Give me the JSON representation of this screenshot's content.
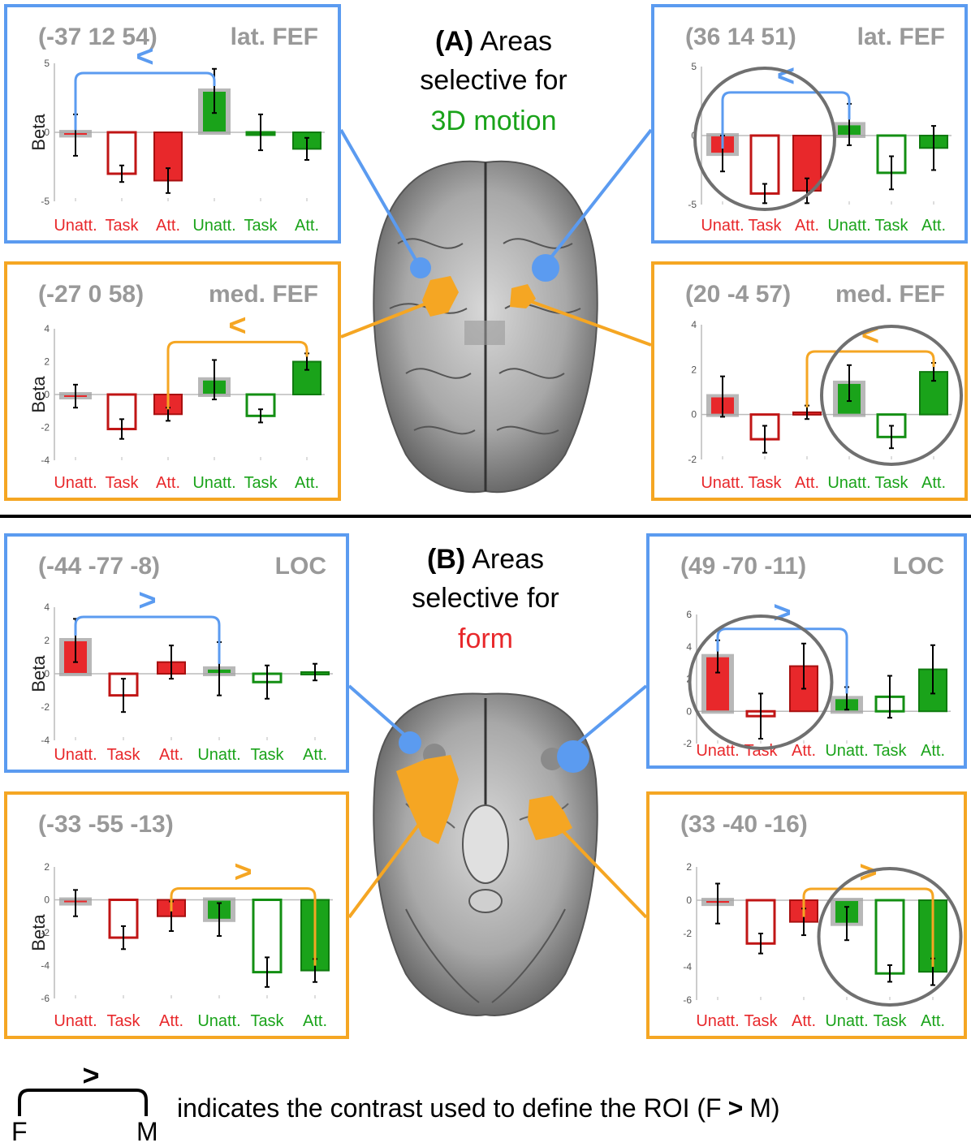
{
  "colors": {
    "blue": "#5b9bf0",
    "orange": "#f5a623",
    "red": "#e8282b",
    "green": "#1aa31a",
    "gray": "#a0a0a0",
    "circle": "#707070"
  },
  "panel_a": {
    "label": "(A)",
    "line1": "Areas",
    "line2": "selective for",
    "line3": "3D motion"
  },
  "panel_b": {
    "label": "(B)",
    "line1": "Areas",
    "line2": "selective for",
    "line3": "form"
  },
  "legend": {
    "symbol": ">",
    "left": "F",
    "right": "M",
    "text": "indicates the contrast used to define the ROI (F",
    "gt": ">",
    "text_end": "M)"
  },
  "chart_data": [
    {
      "type": "bar",
      "coord": "(-37 12 54)",
      "region": "lat. FEF",
      "ylabel": "Beta",
      "categories": [
        "Unatt.",
        "Task",
        "Att.",
        "Unatt.",
        "Task",
        "Att."
      ],
      "values": [
        -0.2,
        -3.0,
        -3.5,
        3.0,
        0.0,
        -1.2
      ],
      "errors": [
        1.5,
        0.6,
        0.9,
        1.6,
        1.3,
        0.8
      ],
      "yticks": [
        5,
        0,
        -5
      ],
      "ylim": [
        -5,
        5
      ],
      "contrast": "<",
      "contrast_from": 0,
      "contrast_to": 3,
      "frame": "blue",
      "circle": ""
    },
    {
      "type": "bar",
      "coord": "(36 14 51)",
      "region": "lat. FEF",
      "ylabel": "",
      "categories": [
        "Unatt.",
        "Task",
        "Att.",
        "Unatt.",
        "Task",
        "Att."
      ],
      "values": [
        -1.3,
        -4.2,
        -4.0,
        0.8,
        -2.7,
        -0.9
      ],
      "errors": [
        1.3,
        0.7,
        0.9,
        1.5,
        1.2,
        1.6
      ],
      "yticks": [
        5,
        0,
        -5
      ],
      "ylim": [
        -5,
        5
      ],
      "contrast": "<",
      "contrast_from": 0,
      "contrast_to": 3,
      "frame": "blue",
      "circle": "left"
    },
    {
      "type": "bar",
      "coord": "(-27 0 58)",
      "region": "med. FEF",
      "ylabel": "Beta",
      "categories": [
        "Unatt.",
        "Task",
        "Att.",
        "Unatt.",
        "Task",
        "Att."
      ],
      "values": [
        -0.1,
        -2.1,
        -1.2,
        0.9,
        -1.3,
        2.0
      ],
      "errors": [
        0.7,
        0.6,
        0.4,
        1.2,
        0.4,
        0.5
      ],
      "yticks": [
        4,
        2,
        0,
        -2,
        -4
      ],
      "ylim": [
        -4,
        4
      ],
      "contrast": "<",
      "contrast_from": 2,
      "contrast_to": 5,
      "frame": "orange",
      "circle": ""
    },
    {
      "type": "bar",
      "coord": "(20 -4 57)",
      "region": "med. FEF",
      "ylabel": "",
      "categories": [
        "Unatt.",
        "Task",
        "Att.",
        "Unatt.",
        "Task",
        "Att."
      ],
      "values": [
        0.8,
        -1.1,
        0.1,
        1.4,
        -1.0,
        1.9
      ],
      "errors": [
        0.9,
        0.6,
        0.3,
        0.8,
        0.5,
        0.4
      ],
      "yticks": [
        4,
        2,
        0,
        -2
      ],
      "ylim": [
        -2,
        4
      ],
      "contrast": "<",
      "contrast_from": 2,
      "contrast_to": 5,
      "frame": "orange",
      "circle": "right"
    },
    {
      "type": "bar",
      "coord": "(-44 -77 -8)",
      "region": "LOC",
      "ylabel": "Beta",
      "categories": [
        "Unatt.",
        "Task",
        "Att.",
        "Unatt.",
        "Task",
        "Att."
      ],
      "values": [
        2.0,
        -1.3,
        0.7,
        0.3,
        -0.5,
        0.1
      ],
      "errors": [
        1.3,
        1.0,
        1.0,
        1.6,
        1.0,
        0.5
      ],
      "yticks": [
        4,
        2,
        0,
        -2,
        -4
      ],
      "ylim": [
        -4,
        4
      ],
      "contrast": ">",
      "contrast_from": 0,
      "contrast_to": 3,
      "frame": "blue",
      "circle": ""
    },
    {
      "type": "bar",
      "coord": "(49 -70 -11)",
      "region": "LOC",
      "ylabel": "",
      "categories": [
        "Unatt.",
        "Task",
        "Att.",
        "Unatt.",
        "Task",
        "Att."
      ],
      "values": [
        3.4,
        -0.3,
        2.8,
        0.8,
        0.9,
        2.6
      ],
      "errors": [
        1.0,
        1.4,
        1.4,
        0.7,
        1.3,
        1.5
      ],
      "yticks": [
        6,
        4,
        2,
        0,
        -2
      ],
      "ylim": [
        -2,
        6
      ],
      "contrast": ">",
      "contrast_from": 0,
      "contrast_to": 3,
      "frame": "blue",
      "circle": "left"
    },
    {
      "type": "bar",
      "coord": "(-33 -55 -13)",
      "region": "",
      "ylabel": "Beta",
      "categories": [
        "Unatt.",
        "Task",
        "Att.",
        "Unatt.",
        "Task",
        "Att."
      ],
      "values": [
        -0.2,
        -2.3,
        -1.0,
        -1.2,
        -4.4,
        -4.3
      ],
      "errors": [
        0.8,
        0.7,
        0.9,
        1.0,
        0.9,
        0.7
      ],
      "yticks": [
        2,
        0,
        -2,
        -4,
        -6
      ],
      "ylim": [
        -6,
        2
      ],
      "contrast": ">",
      "contrast_from": 2,
      "contrast_to": 5,
      "frame": "orange",
      "circle": ""
    },
    {
      "type": "bar",
      "coord": "(33 -40 -16)",
      "region": "",
      "ylabel": "",
      "categories": [
        "Unatt.",
        "Task",
        "Att.",
        "Unatt.",
        "Task",
        "Att."
      ],
      "values": [
        -0.2,
        -2.6,
        -1.3,
        -1.4,
        -4.4,
        -4.3
      ],
      "errors": [
        1.2,
        0.6,
        0.8,
        1.0,
        0.5,
        0.8
      ],
      "yticks": [
        2,
        0,
        -2,
        -4,
        -6
      ],
      "ylim": [
        -6,
        2
      ],
      "contrast": ">",
      "contrast_from": 2,
      "contrast_to": 5,
      "frame": "orange",
      "circle": "right"
    }
  ]
}
